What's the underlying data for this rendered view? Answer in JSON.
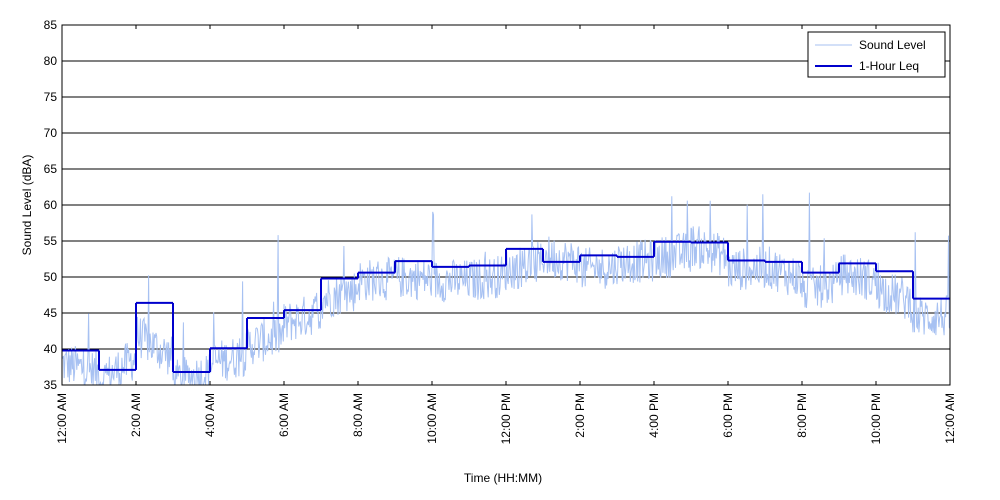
{
  "chart_data": {
    "type": "line",
    "title": "",
    "xlabel": "Time (HH:MM)",
    "ylabel": "Sound Level (dBA)",
    "ylim": [
      35,
      85
    ],
    "xlim": [
      "12:00 AM",
      "12:00 AM"
    ],
    "y_ticks": [
      "35",
      "40",
      "45",
      "50",
      "55",
      "60",
      "65",
      "70",
      "75",
      "80",
      "85"
    ],
    "x_ticks": [
      "12:00 AM",
      "2:00 AM",
      "4:00 AM",
      "6:00 AM",
      "8:00 AM",
      "10:00 AM",
      "12:00 PM",
      "2:00 PM",
      "4:00 PM",
      "6:00 PM",
      "8:00 PM",
      "10:00 PM",
      "12:00 AM"
    ],
    "grid": "horizontal",
    "legend_position": "top-right",
    "colors": {
      "sound_level": "#a7c1f2",
      "leq": "#0000cc",
      "grid": "#000000"
    },
    "series": [
      {
        "name": "Sound Level",
        "style": "thin noisy line",
        "hourly_baseline": [
          38,
          35.5,
          42,
          35.5,
          38,
          40.5,
          43.5,
          47,
          49.5,
          50,
          49.5,
          49.5,
          51,
          53,
          51,
          52,
          52.5,
          54.5,
          51,
          51.5,
          48,
          50.5,
          48.5,
          44.5
        ]
      },
      {
        "name": "1-Hour Leq",
        "x": [
          "12:00 AM",
          "1:00 AM",
          "2:00 AM",
          "3:00 AM",
          "4:00 AM",
          "5:00 AM",
          "6:00 AM",
          "7:00 AM",
          "8:00 AM",
          "9:00 AM",
          "10:00 AM",
          "11:00 AM",
          "12:00 PM",
          "1:00 PM",
          "2:00 PM",
          "3:00 PM",
          "4:00 PM",
          "5:00 PM",
          "6:00 PM",
          "7:00 PM",
          "8:00 PM",
          "9:00 PM",
          "10:00 PM",
          "11:00 PM"
        ],
        "values": [
          39.8,
          37.1,
          46.4,
          36.8,
          40.1,
          44.3,
          45.4,
          49.8,
          50.6,
          52.2,
          51.4,
          51.6,
          53.9,
          52.1,
          53,
          52.8,
          54.9,
          54.8,
          52.3,
          52.1,
          50.6,
          51.9,
          50.8,
          47
        ]
      }
    ]
  }
}
